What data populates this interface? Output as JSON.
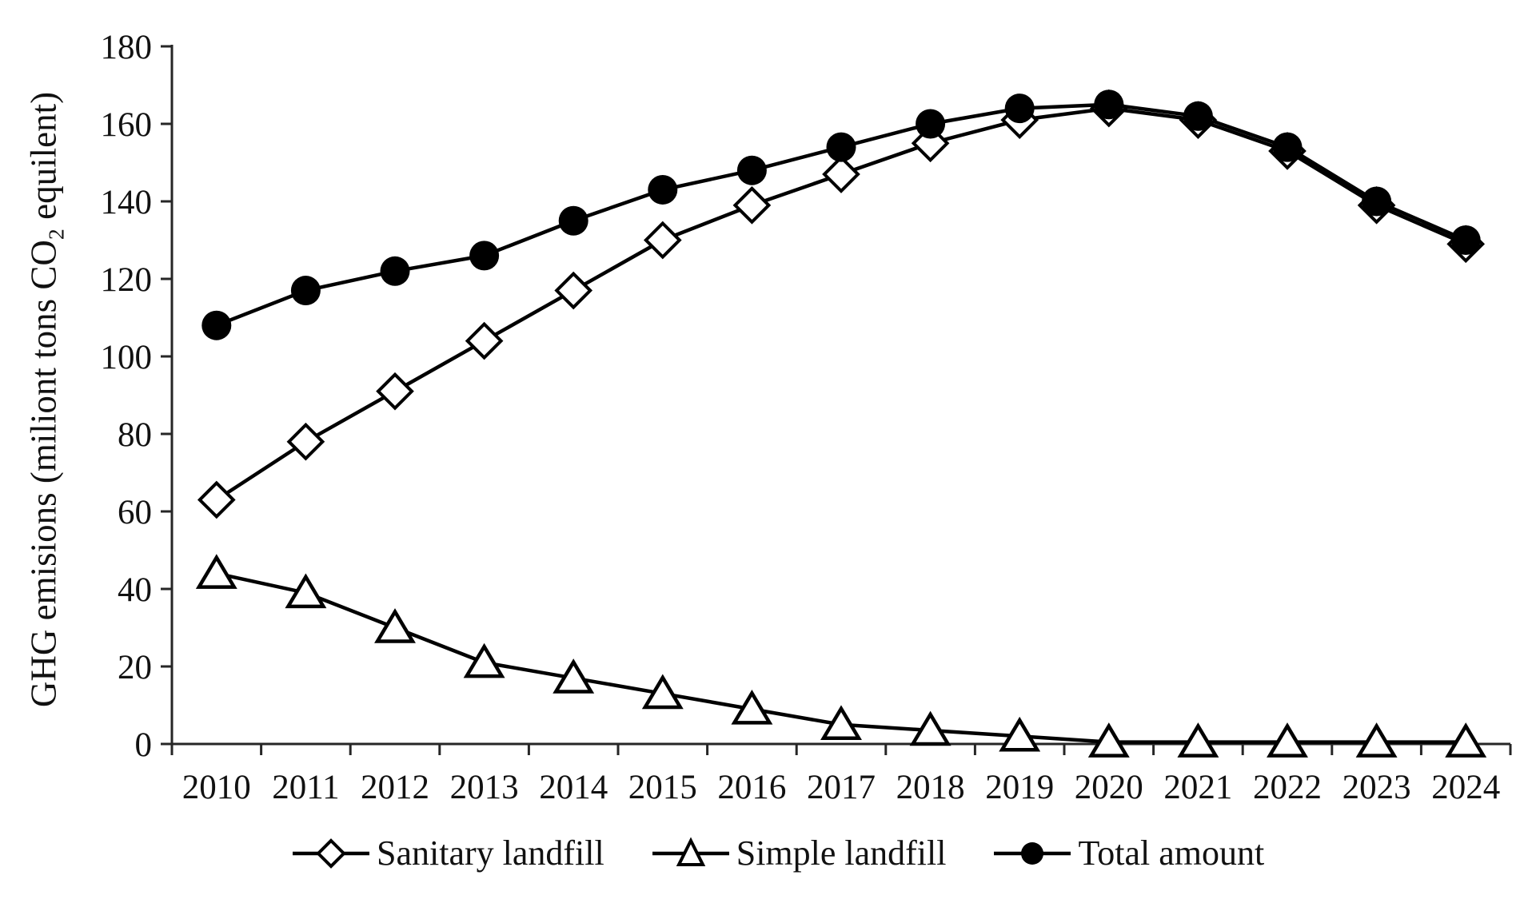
{
  "figure": {
    "background": "#ffffff",
    "ink": "#000000",
    "axis_color": "#262626"
  },
  "chart_data": {
    "type": "line",
    "title": "",
    "xlabel": "",
    "ylabel": "GHG emisions (miliont tons CO2 equilent)",
    "ylabel_parts": {
      "pre": "GHG emisions (miliont tons CO",
      "sub": "2",
      "post": " equilent)"
    },
    "categories": [
      "2010",
      "2011",
      "2012",
      "2013",
      "2014",
      "2015",
      "2016",
      "2017",
      "2018",
      "2019",
      "2020",
      "2021",
      "2022",
      "2023",
      "2024"
    ],
    "ylim": [
      0,
      180
    ],
    "yticks": [
      0,
      20,
      40,
      60,
      80,
      100,
      120,
      140,
      160,
      180
    ],
    "grid": false,
    "legend_position": "bottom",
    "series": [
      {
        "name": "Sanitary landfill",
        "marker": "diamond-open",
        "color": "#000000",
        "values": [
          63,
          78,
          91,
          104,
          117,
          130,
          139,
          147,
          155,
          161,
          164,
          161,
          153,
          139,
          129
        ]
      },
      {
        "name": "Simple landfill",
        "marker": "triangle-open",
        "color": "#000000",
        "values": [
          44,
          39,
          30,
          21,
          17,
          13,
          9,
          5,
          3.5,
          2,
          0.5,
          0.5,
          0.5,
          0.5,
          0.5
        ]
      },
      {
        "name": "Total amount",
        "marker": "circle-filled",
        "color": "#000000",
        "values": [
          108,
          117,
          122,
          126,
          135,
          143,
          148,
          154,
          160,
          164,
          165,
          162,
          154,
          140,
          130
        ]
      }
    ]
  }
}
